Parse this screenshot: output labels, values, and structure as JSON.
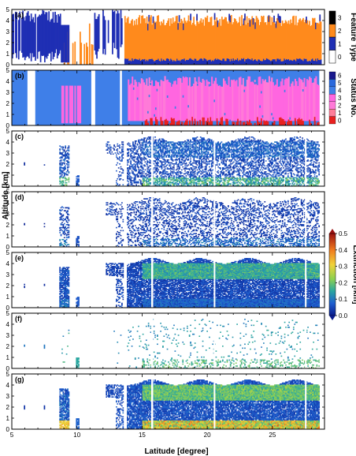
{
  "figure": {
    "xlabel": "Latitude [degree]",
    "ylabel": "Altitude [km]",
    "x_ticks": [
      "5",
      "10",
      "15",
      "20",
      "25"
    ],
    "y_ticks": [
      "0",
      "1",
      "2",
      "3",
      "4",
      "5"
    ]
  },
  "colorbars": {
    "feature_type": {
      "label": "Feature Type",
      "ticks": [
        "0",
        "1",
        "2",
        "3"
      ],
      "colors": [
        "#ffffff",
        "#1f2fb4",
        "#ff8a1c",
        "#000000"
      ]
    },
    "status_no": {
      "label": "Status No.",
      "ticks": [
        "0",
        "1",
        "2",
        "3",
        "4",
        "5",
        "6"
      ],
      "colors": [
        "#e8201f",
        "#ff7e9a",
        "#ff7ad8",
        "#ff66e0",
        "#3f7fe8",
        "#2a69dd",
        "#18188c"
      ]
    },
    "extinction": {
      "label": "Extinction [/km]",
      "ticks": [
        "0.0",
        "0.1",
        "0.2",
        "0.3",
        "0.4",
        "0.5"
      ],
      "stops": [
        "#0a1b8c",
        "#1f5fd0",
        "#2aa7a0",
        "#8fd14f",
        "#f0d23a",
        "#f07a1e",
        "#9a1010"
      ]
    }
  },
  "chart_data": [
    {
      "panel": "(a)",
      "type": "heatmap",
      "variable": "Feature Type",
      "xlim": [
        5,
        29
      ],
      "ylim": [
        0,
        5
      ],
      "regions": [
        {
          "category": 1,
          "x": [
            5.0,
            8.7
          ],
          "y": [
            0.3,
            5.0
          ]
        },
        {
          "category": 2,
          "x": [
            8.7,
            11.2
          ],
          "y": [
            0.0,
            3.5
          ]
        },
        {
          "category": 1,
          "x": [
            11.5,
            13.5
          ],
          "y": [
            0.5,
            5.0
          ]
        },
        {
          "category": 2,
          "x": [
            13.6,
            28.6
          ],
          "y": [
            0.3,
            4.5
          ]
        },
        {
          "category": 1,
          "x": [
            13.6,
            28.6
          ],
          "y": [
            0.0,
            0.4
          ]
        }
      ]
    },
    {
      "panel": "(b)",
      "type": "heatmap",
      "variable": "Status No.",
      "xlim": [
        5,
        29
      ],
      "ylim": [
        0,
        5
      ],
      "regions": [
        {
          "status": 5,
          "x": [
            5.0,
            13.5
          ],
          "y": [
            0.0,
            5.0
          ]
        },
        {
          "status": 3,
          "x": [
            8.7,
            10.3
          ],
          "y": [
            0.2,
            3.6
          ]
        },
        {
          "status": 5,
          "x": [
            13.5,
            28.6
          ],
          "y": [
            0.0,
            5.0
          ]
        },
        {
          "status": 3,
          "x": [
            13.8,
            28.6
          ],
          "y": [
            0.4,
            4.5
          ]
        },
        {
          "status": 0,
          "x": [
            15.0,
            28.6
          ],
          "y": [
            0.0,
            0.6
          ]
        }
      ]
    },
    {
      "panel": "(c)",
      "type": "heatmap",
      "variable": "Extinction",
      "xlim": [
        5,
        29
      ],
      "ylim": [
        0,
        5
      ],
      "clim": [
        0.0,
        0.5
      ],
      "regions": [
        {
          "x": [
            8.6,
            9.4
          ],
          "y": [
            0.2,
            3.5
          ],
          "value": 0.08
        },
        {
          "x": [
            13.8,
            28.6
          ],
          "y": [
            0.3,
            4.5
          ],
          "value": 0.05
        },
        {
          "x": [
            15.0,
            28.0
          ],
          "y": [
            0.0,
            0.8
          ],
          "value": 0.2
        }
      ]
    },
    {
      "panel": "(d)",
      "type": "heatmap",
      "variable": "Extinction",
      "xlim": [
        5,
        29
      ],
      "ylim": [
        0,
        5
      ],
      "clim": [
        0.0,
        0.5
      ],
      "regions": [
        {
          "x": [
            8.6,
            9.4
          ],
          "y": [
            0.2,
            3.5
          ],
          "value": 0.05
        },
        {
          "x": [
            13.8,
            28.6
          ],
          "y": [
            0.2,
            4.6
          ],
          "value": 0.03
        },
        {
          "x": [
            15.0,
            28.0
          ],
          "y": [
            0.0,
            0.8
          ],
          "value": 0.08
        }
      ]
    },
    {
      "panel": "(e)",
      "type": "heatmap",
      "variable": "Extinction",
      "xlim": [
        5,
        29
      ],
      "ylim": [
        0,
        5
      ],
      "clim": [
        0.0,
        0.5
      ],
      "regions": [
        {
          "x": [
            8.6,
            9.4
          ],
          "y": [
            0.2,
            3.5
          ],
          "value": 0.12
        },
        {
          "x": [
            13.8,
            28.6
          ],
          "y": [
            0.2,
            4.6
          ],
          "value": 0.1
        },
        {
          "x": [
            15.0,
            28.0
          ],
          "y": [
            2.6,
            4.2
          ],
          "value": 0.22
        }
      ]
    },
    {
      "panel": "(f)",
      "type": "heatmap",
      "variable": "Extinction",
      "xlim": [
        5,
        29
      ],
      "ylim": [
        0,
        5
      ],
      "clim": [
        0.0,
        0.5
      ],
      "regions": [
        {
          "x": [
            13.8,
            28.6
          ],
          "y": [
            0.0,
            4.4
          ],
          "value": 0.15
        }
      ]
    },
    {
      "panel": "(g)",
      "type": "heatmap",
      "variable": "Extinction",
      "xlim": [
        5,
        29
      ],
      "ylim": [
        0,
        5
      ],
      "clim": [
        0.0,
        0.5
      ],
      "regions": [
        {
          "x": [
            8.6,
            9.4
          ],
          "y": [
            0.2,
            3.5
          ],
          "value": 0.15
        },
        {
          "x": [
            13.8,
            28.6
          ],
          "y": [
            0.2,
            4.6
          ],
          "value": 0.12
        },
        {
          "x": [
            15.0,
            28.0
          ],
          "y": [
            2.6,
            4.2
          ],
          "value": 0.25
        },
        {
          "x": [
            15.0,
            28.0
          ],
          "y": [
            0.0,
            0.7
          ],
          "value": 0.4
        }
      ]
    }
  ]
}
